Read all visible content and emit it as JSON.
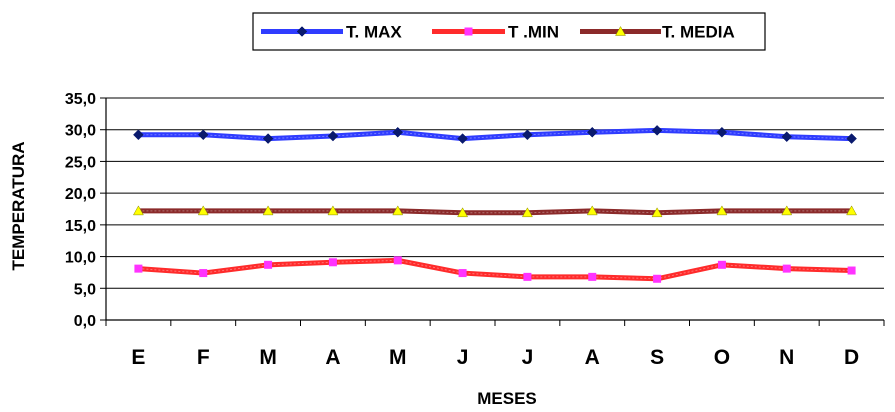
{
  "chart_data": {
    "type": "line",
    "title": "",
    "xlabel": "MESES",
    "ylabel": "TEMPERATURA",
    "categories": [
      "E",
      "F",
      "M",
      "A",
      "M",
      "J",
      "J",
      "A",
      "S",
      "O",
      "N",
      "D"
    ],
    "ylim": [
      0,
      35
    ],
    "yticks": [
      "0,0",
      "5,0",
      "10,0",
      "15,0",
      "20,0",
      "25,0",
      "30,0",
      "35,0"
    ],
    "grid": true,
    "legend_position": "top",
    "series": [
      {
        "name": "T. MAX",
        "color": "#2f3cff",
        "marker_color": "#0a1a6e",
        "marker": "diamond",
        "values": [
          29.2,
          29.2,
          28.6,
          29.0,
          29.6,
          28.6,
          29.2,
          29.6,
          29.9,
          29.6,
          28.9,
          28.6
        ]
      },
      {
        "name": "T .MIN",
        "color": "#ff2b2b",
        "marker_color": "#ff33ff",
        "marker": "square",
        "values": [
          8.1,
          7.4,
          8.7,
          9.1,
          9.4,
          7.4,
          6.8,
          6.8,
          6.5,
          8.7,
          8.1,
          7.8
        ]
      },
      {
        "name": "T. MEDIA",
        "color": "#8b2a2a",
        "marker_color": "#ffff00",
        "marker": "triangle",
        "values": [
          17.2,
          17.2,
          17.2,
          17.2,
          17.2,
          16.9,
          16.9,
          17.2,
          16.9,
          17.2,
          17.2,
          17.2
        ]
      }
    ]
  }
}
